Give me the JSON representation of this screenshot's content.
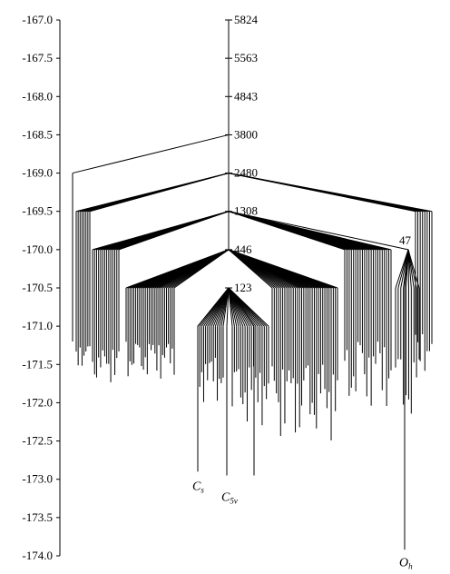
{
  "chart_data": {
    "type": "disconnectivity-graph",
    "yaxis": {
      "range": [
        -174.0,
        -167.0
      ],
      "tick_values": [
        -167.0,
        -167.5,
        -168.0,
        -168.5,
        -169.0,
        -169.5,
        -170.0,
        -170.5,
        -171.0,
        -171.5,
        -172.0,
        -172.5,
        -173.0,
        -173.5,
        -174.0
      ],
      "tick_labels": [
        "-167.0",
        "-167.5",
        "-168.0",
        "-168.5",
        "-169.0",
        "-169.5",
        "-170.0",
        "-170.5",
        "-171.0",
        "-171.5",
        "-172.0",
        "-172.5",
        "-173.0",
        "-173.5",
        "-174.0"
      ]
    },
    "center_axis_labels": [
      {
        "energy": -167.0,
        "label": "5824"
      },
      {
        "energy": -167.5,
        "label": "5563"
      },
      {
        "energy": -168.0,
        "label": "4843"
      },
      {
        "energy": -168.5,
        "label": "3800"
      },
      {
        "energy": -169.0,
        "label": "2480"
      },
      {
        "energy": -169.5,
        "label": "1308"
      },
      {
        "energy": -170.0,
        "label": "446"
      },
      {
        "energy": -170.5,
        "label": "123"
      }
    ],
    "side_node_label": {
      "energy": -170.0,
      "label": "47"
    },
    "structures": [
      {
        "base": "C",
        "sub": "s",
        "energy": -172.9
      },
      {
        "base": "C",
        "sub": "5v",
        "energy": -172.95
      },
      {
        "base": "O",
        "sub": "h",
        "energy": -173.92
      }
    ]
  }
}
